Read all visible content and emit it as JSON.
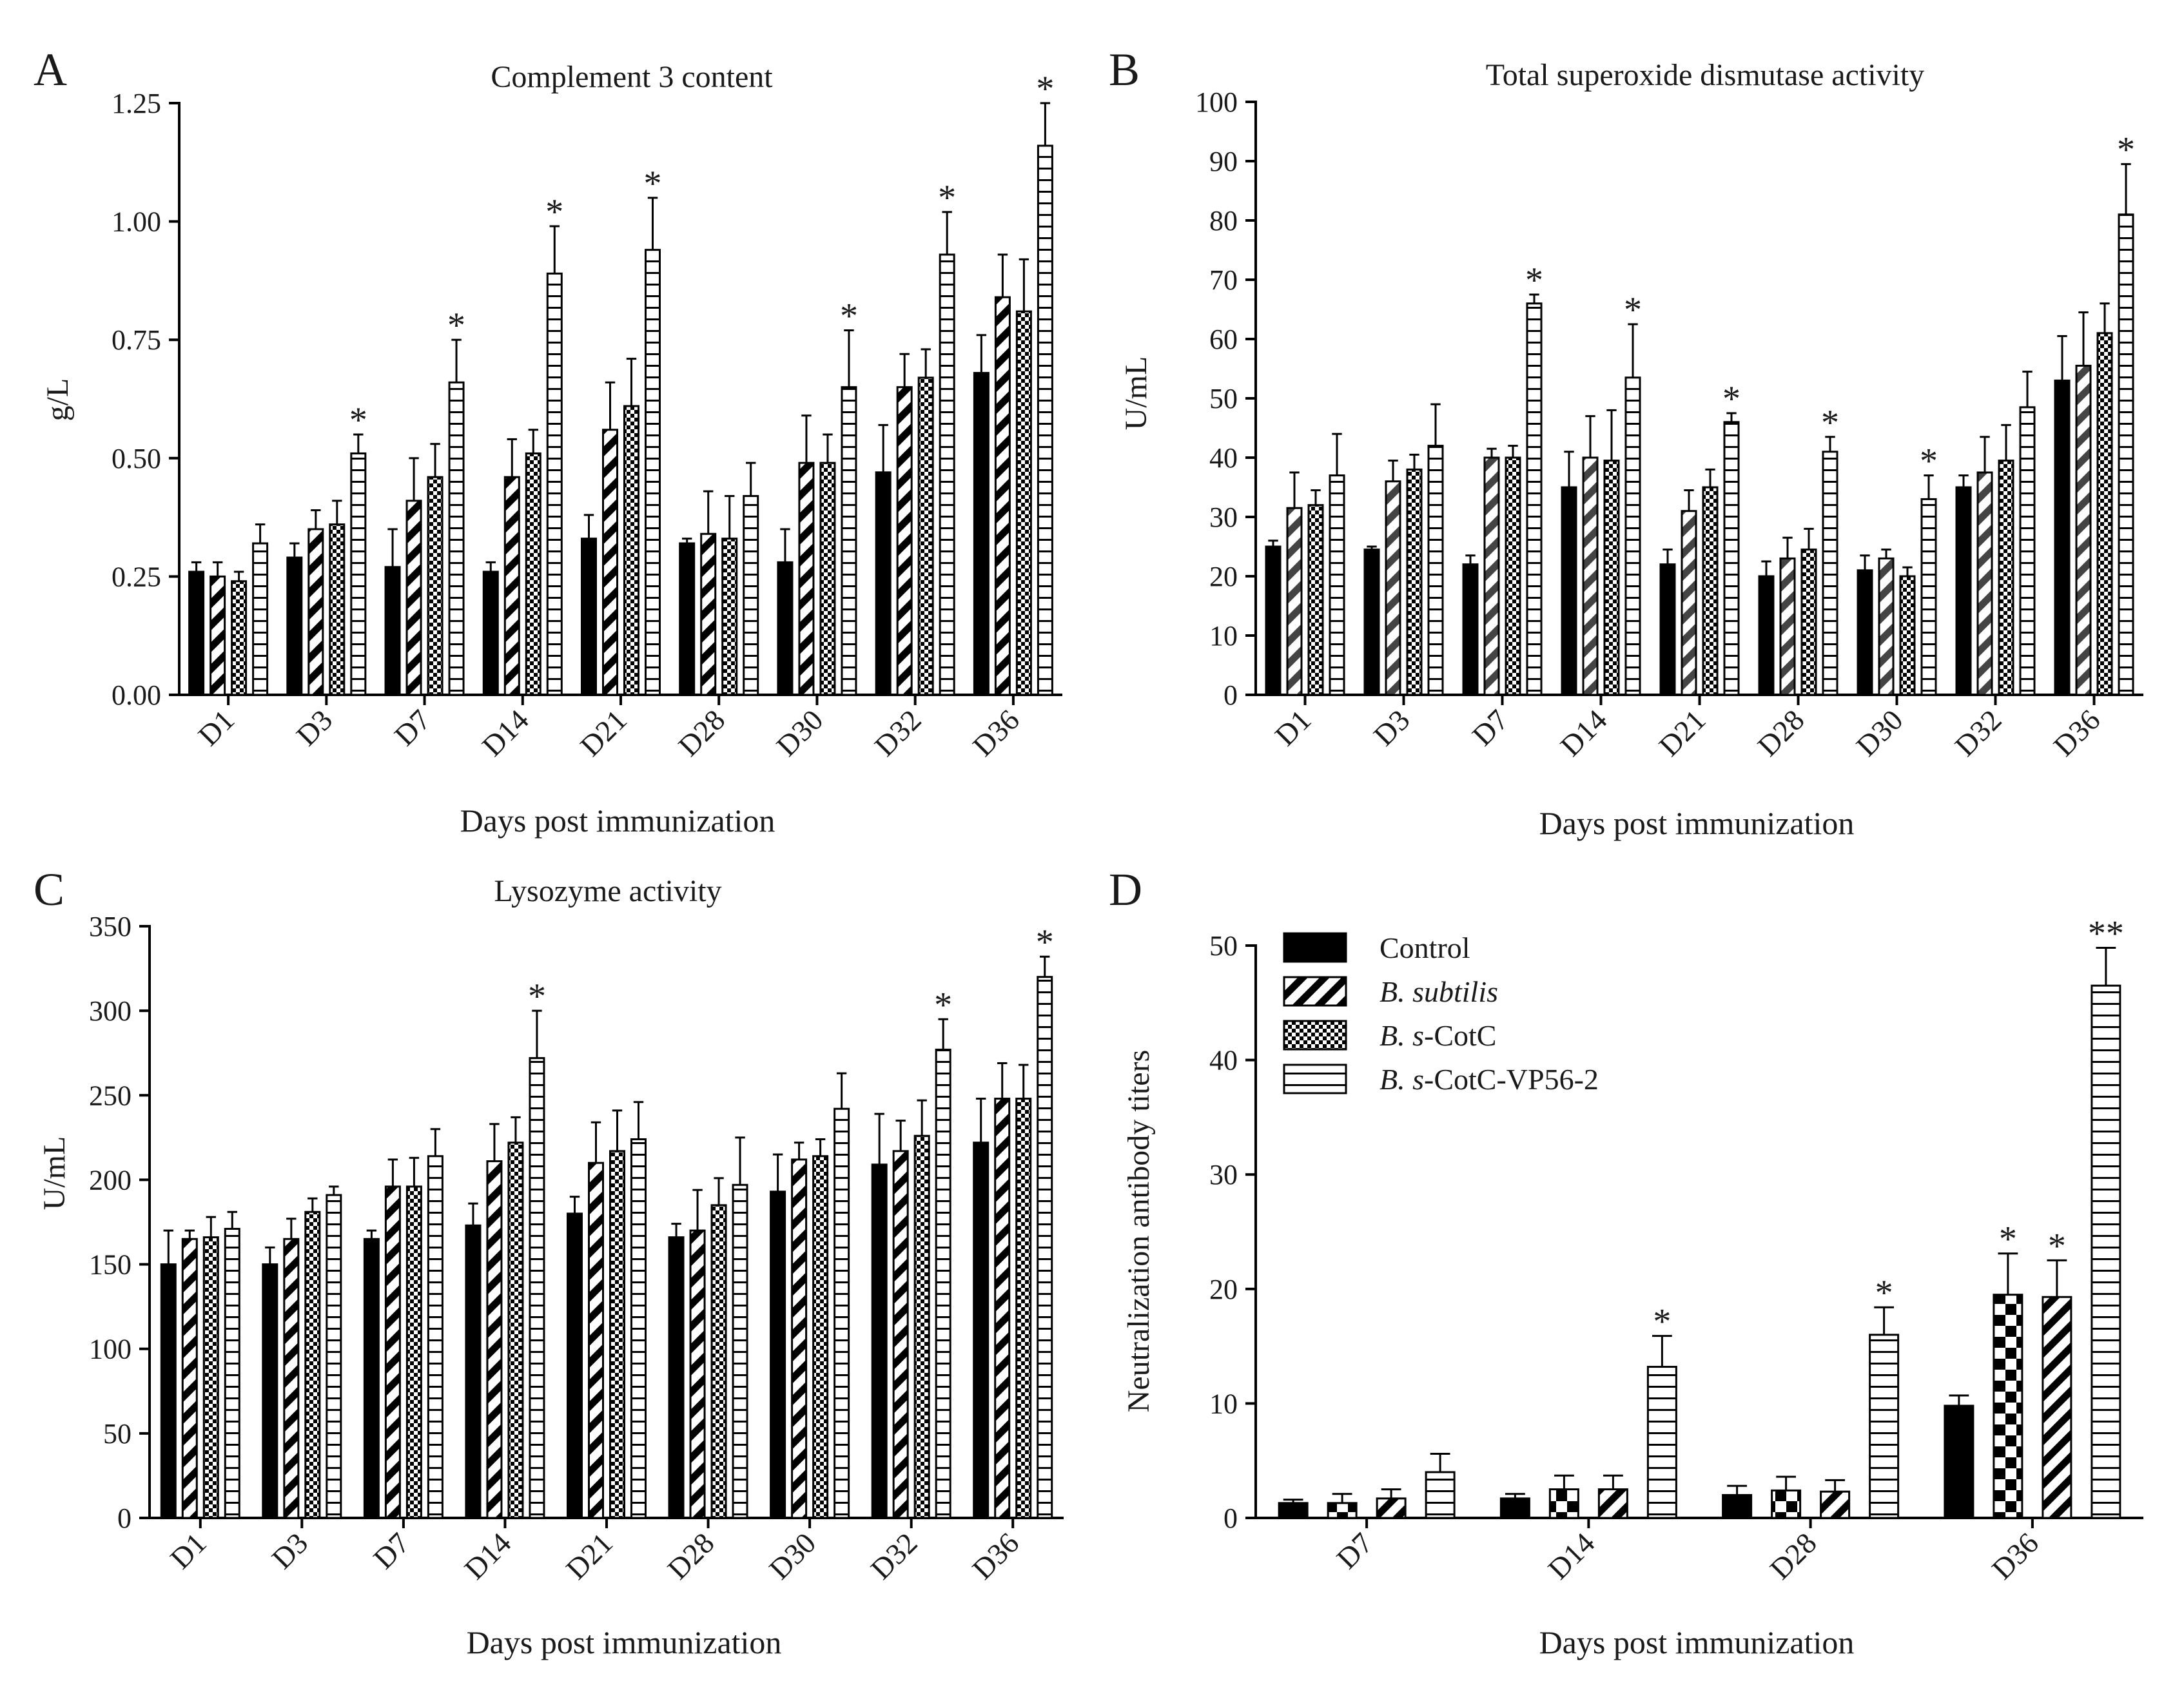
{
  "groups": [
    {
      "name": "Control",
      "pattern": "solid"
    },
    {
      "name": "B. subtilis",
      "pattern": "diag"
    },
    {
      "name": "B. s-CotC",
      "pattern": "checker"
    },
    {
      "name": "B. s-CotC-VP56-2",
      "pattern": "hlines"
    }
  ],
  "legend": [
    {
      "italic": "",
      "rest": "Control",
      "pattern": "solid"
    },
    {
      "italic": "B. subtilis",
      "rest": "",
      "pattern": "diag"
    },
    {
      "italic": "B. s",
      "rest": "-CotC",
      "pattern": "checker"
    },
    {
      "italic": "B. s",
      "rest": "-CotC-VP56-2",
      "pattern": "hlines"
    }
  ],
  "chart_data": [
    {
      "panel": "A",
      "type": "bar",
      "title": "Complement 3 content",
      "ylabel": "g/L",
      "xlabel": "Days post immunization",
      "ylim": [
        0,
        1.25
      ],
      "yticks": [
        0,
        0.25,
        0.5,
        0.75,
        1.0,
        1.25
      ],
      "ytick_labels": [
        "0.00",
        "0.25",
        "0.50",
        "0.75",
        "1.00",
        "1.25"
      ],
      "categories": [
        "D1",
        "D3",
        "D7",
        "D14",
        "D21",
        "D28",
        "D30",
        "D32",
        "D36"
      ],
      "patterns": [
        "solid",
        "diag",
        "checker",
        "hlines"
      ],
      "series": [
        {
          "name": "Control",
          "values": [
            0.26,
            0.29,
            0.27,
            0.26,
            0.33,
            0.32,
            0.28,
            0.47,
            0.68
          ],
          "errors": [
            0.02,
            0.03,
            0.08,
            0.02,
            0.05,
            0.01,
            0.07,
            0.1,
            0.08
          ]
        },
        {
          "name": "B. subtilis",
          "values": [
            0.25,
            0.35,
            0.41,
            0.46,
            0.56,
            0.34,
            0.49,
            0.65,
            0.84
          ],
          "errors": [
            0.03,
            0.04,
            0.09,
            0.08,
            0.1,
            0.09,
            0.1,
            0.07,
            0.09
          ]
        },
        {
          "name": "B. s-CotC",
          "values": [
            0.24,
            0.36,
            0.46,
            0.51,
            0.61,
            0.33,
            0.49,
            0.67,
            0.81
          ],
          "errors": [
            0.02,
            0.05,
            0.07,
            0.05,
            0.1,
            0.09,
            0.06,
            0.06,
            0.11
          ]
        },
        {
          "name": "B. s-CotC-VP56-2",
          "values": [
            0.32,
            0.51,
            0.66,
            0.89,
            0.94,
            0.42,
            0.65,
            0.93,
            1.16
          ],
          "errors": [
            0.04,
            0.04,
            0.09,
            0.1,
            0.11,
            0.07,
            0.12,
            0.09,
            0.09
          ]
        }
      ],
      "significance": [
        {
          "category": "D3",
          "series": 3,
          "label": "*"
        },
        {
          "category": "D7",
          "series": 3,
          "label": "*"
        },
        {
          "category": "D14",
          "series": 3,
          "label": "*"
        },
        {
          "category": "D21",
          "series": 3,
          "label": "*"
        },
        {
          "category": "D30",
          "series": 3,
          "label": "*"
        },
        {
          "category": "D32",
          "series": 3,
          "label": "*"
        },
        {
          "category": "D36",
          "series": 3,
          "label": "*"
        }
      ]
    },
    {
      "panel": "B",
      "type": "bar",
      "title": "Total superoxide dismutase activity",
      "ylabel": "U/mL",
      "xlabel": "Days post immunization",
      "ylim": [
        0,
        100
      ],
      "yticks": [
        0,
        10,
        20,
        30,
        40,
        50,
        60,
        70,
        80,
        90,
        100
      ],
      "ytick_labels": [
        "0",
        "10",
        "20",
        "30",
        "40",
        "50",
        "60",
        "70",
        "80",
        "90",
        "100"
      ],
      "categories": [
        "D1",
        "D3",
        "D7",
        "D14",
        "D21",
        "D28",
        "D30",
        "D32",
        "D36"
      ],
      "patterns": [
        "solid",
        "diag",
        "checker",
        "hlines"
      ],
      "series": [
        {
          "name": "Control",
          "values": [
            25,
            24.5,
            22,
            35,
            22,
            20,
            21,
            35,
            53
          ],
          "errors": [
            1,
            0.5,
            1.5,
            6,
            2.5,
            2.5,
            2.5,
            2,
            7.5
          ]
        },
        {
          "name": "B. subtilis",
          "values": [
            31.5,
            36,
            40,
            40,
            31,
            23,
            23,
            37.5,
            55.5
          ],
          "errors": [
            6,
            3.5,
            1.5,
            7,
            3.5,
            3.5,
            1.5,
            6,
            9
          ]
        },
        {
          "name": "B. s-CotC",
          "values": [
            32,
            38,
            40,
            39.5,
            35,
            24.5,
            20,
            39.5,
            61
          ],
          "errors": [
            2.5,
            2.5,
            2,
            8.5,
            3,
            3.5,
            1.5,
            6,
            5
          ]
        },
        {
          "name": "B. s-CotC-VP56-2",
          "values": [
            37,
            42,
            66,
            53.5,
            46,
            41,
            33,
            48.5,
            81
          ],
          "errors": [
            7,
            7,
            1.5,
            9,
            1.5,
            2.5,
            4,
            6,
            8.5
          ]
        }
      ],
      "significance": [
        {
          "category": "D7",
          "series": 3,
          "label": "*"
        },
        {
          "category": "D14",
          "series": 3,
          "label": "*"
        },
        {
          "category": "D21",
          "series": 3,
          "label": "*"
        },
        {
          "category": "D28",
          "series": 3,
          "label": "*"
        },
        {
          "category": "D30",
          "series": 3,
          "label": "*"
        },
        {
          "category": "D36",
          "series": 3,
          "label": "*"
        }
      ]
    },
    {
      "panel": "C",
      "type": "bar",
      "title": "Lysozyme  activity",
      "ylabel": "U/mL",
      "xlabel": "Days post immunization",
      "ylim": [
        0,
        350
      ],
      "yticks": [
        0,
        50,
        100,
        150,
        200,
        250,
        300,
        350
      ],
      "ytick_labels": [
        "0",
        "50",
        "100",
        "150",
        "200",
        "250",
        "300",
        "350"
      ],
      "categories": [
        "D1",
        "D3",
        "D7",
        "D14",
        "D21",
        "D28",
        "D30",
        "D32",
        "D36"
      ],
      "patterns": [
        "solid",
        "diag",
        "checker",
        "hlines"
      ],
      "series": [
        {
          "name": "Control",
          "values": [
            150,
            150,
            165,
            173,
            180,
            166,
            193,
            209,
            222
          ],
          "errors": [
            20,
            10,
            5,
            13,
            10,
            8,
            22,
            30,
            26
          ]
        },
        {
          "name": "B. subtilis",
          "values": [
            165,
            165,
            196,
            211,
            210,
            170,
            212,
            217,
            248
          ],
          "errors": [
            5,
            12,
            16,
            22,
            24,
            24,
            10,
            18,
            21
          ]
        },
        {
          "name": "B. s-CotC",
          "values": [
            166,
            181,
            196,
            222,
            217,
            185,
            214,
            226,
            248
          ],
          "errors": [
            12,
            8,
            17,
            15,
            24,
            16,
            10,
            21,
            20
          ]
        },
        {
          "name": "B. s-CotC-VP56-2",
          "values": [
            171,
            191,
            214,
            272,
            224,
            197,
            242,
            277,
            320
          ],
          "errors": [
            10,
            5,
            16,
            28,
            22,
            28,
            21,
            18,
            12
          ]
        }
      ],
      "significance": [
        {
          "category": "D14",
          "series": 3,
          "label": "*"
        },
        {
          "category": "D32",
          "series": 3,
          "label": "*"
        },
        {
          "category": "D36",
          "series": 3,
          "label": "*"
        }
      ]
    },
    {
      "panel": "D",
      "type": "bar",
      "title": "",
      "ylabel": "Neutralization antibody titers",
      "xlabel": "Days post immunization",
      "ylim": [
        0,
        50
      ],
      "yticks": [
        0,
        10,
        20,
        30,
        40,
        50
      ],
      "ytick_labels": [
        "0",
        "10",
        "20",
        "30",
        "40",
        "50"
      ],
      "categories": [
        "D7",
        "D14",
        "D28",
        "D36"
      ],
      "patterns": [
        "solid",
        "checker",
        "diag",
        "hlines"
      ],
      "series": [
        {
          "name": "Control",
          "values": [
            1.3,
            1.7,
            2,
            9.8
          ],
          "errors": [
            0.3,
            0.4,
            0.8,
            0.9
          ]
        },
        {
          "name": "B. subtilis",
          "values": [
            1.3,
            2.5,
            2.4,
            19.5
          ],
          "errors": [
            0.8,
            1.2,
            1.2,
            3.6
          ]
        },
        {
          "name": "B. s-CotC",
          "values": [
            1.7,
            2.5,
            2.3,
            19.3
          ],
          "errors": [
            0.8,
            1.2,
            1.0,
            3.2
          ]
        },
        {
          "name": "B. s-CotC-VP56-2",
          "values": [
            4,
            13.2,
            16,
            46.5
          ],
          "errors": [
            1.6,
            2.7,
            2.4,
            3.3
          ]
        }
      ],
      "significance": [
        {
          "category": "D14",
          "series": 3,
          "label": "*"
        },
        {
          "category": "D28",
          "series": 3,
          "label": "*"
        },
        {
          "category": "D36",
          "series": 1,
          "label": "*"
        },
        {
          "category": "D36",
          "series": 2,
          "label": "*"
        },
        {
          "category": "D36",
          "series": 3,
          "label": "**"
        }
      ]
    }
  ]
}
